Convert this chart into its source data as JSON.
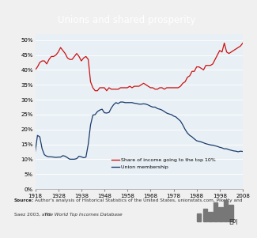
{
  "title": "Unions and shared prosperity",
  "title_bg": "#8fa5b0",
  "plot_bg": "#e8f0f5",
  "outer_bg": "#f0f0f0",
  "source_bg": "#d0d0d0",
  "legend_line1": "Share of income going to the top 10%",
  "legend_line2": "Union membership",
  "red_color": "#cc1111",
  "blue_color": "#1a3a6b",
  "ylim": [
    0,
    0.52
  ],
  "yticks": [
    0,
    0.05,
    0.1,
    0.15,
    0.2,
    0.25,
    0.3,
    0.35,
    0.4,
    0.45,
    0.5
  ],
  "xticks": [
    1918,
    1928,
    1938,
    1948,
    1958,
    1968,
    1978,
    1988,
    1998,
    2008
  ],
  "red_data": {
    "years": [
      1918,
      1919,
      1920,
      1921,
      1922,
      1923,
      1924,
      1925,
      1926,
      1927,
      1928,
      1929,
      1930,
      1931,
      1932,
      1933,
      1934,
      1935,
      1936,
      1937,
      1938,
      1939,
      1940,
      1941,
      1942,
      1943,
      1944,
      1945,
      1946,
      1947,
      1948,
      1949,
      1950,
      1951,
      1952,
      1953,
      1954,
      1955,
      1956,
      1957,
      1958,
      1959,
      1960,
      1961,
      1962,
      1963,
      1964,
      1965,
      1966,
      1967,
      1968,
      1969,
      1970,
      1971,
      1972,
      1973,
      1974,
      1975,
      1976,
      1977,
      1978,
      1979,
      1980,
      1981,
      1982,
      1983,
      1984,
      1985,
      1986,
      1987,
      1988,
      1989,
      1990,
      1991,
      1992,
      1993,
      1994,
      1995,
      1996,
      1997,
      1998,
      1999,
      2000,
      2001,
      2002,
      2003,
      2004,
      2005,
      2006,
      2007,
      2008
    ],
    "values": [
      0.4,
      0.41,
      0.425,
      0.43,
      0.43,
      0.42,
      0.435,
      0.445,
      0.445,
      0.45,
      0.46,
      0.475,
      0.465,
      0.455,
      0.44,
      0.435,
      0.435,
      0.445,
      0.455,
      0.445,
      0.43,
      0.44,
      0.445,
      0.435,
      0.36,
      0.34,
      0.33,
      0.33,
      0.34,
      0.34,
      0.34,
      0.33,
      0.34,
      0.335,
      0.335,
      0.335,
      0.335,
      0.34,
      0.34,
      0.34,
      0.34,
      0.345,
      0.34,
      0.345,
      0.345,
      0.345,
      0.35,
      0.355,
      0.35,
      0.345,
      0.34,
      0.34,
      0.335,
      0.335,
      0.34,
      0.34,
      0.335,
      0.34,
      0.34,
      0.34,
      0.34,
      0.34,
      0.34,
      0.345,
      0.355,
      0.36,
      0.375,
      0.38,
      0.395,
      0.395,
      0.41,
      0.41,
      0.405,
      0.4,
      0.415,
      0.415,
      0.415,
      0.42,
      0.435,
      0.45,
      0.465,
      0.46,
      0.49,
      0.46,
      0.455,
      0.46,
      0.465,
      0.47,
      0.475,
      0.48,
      0.49
    ]
  },
  "blue_data": {
    "years": [
      1918,
      1919,
      1920,
      1921,
      1922,
      1923,
      1924,
      1925,
      1926,
      1927,
      1928,
      1929,
      1930,
      1931,
      1932,
      1933,
      1934,
      1935,
      1936,
      1937,
      1938,
      1939,
      1940,
      1941,
      1942,
      1943,
      1944,
      1945,
      1946,
      1947,
      1948,
      1949,
      1950,
      1951,
      1952,
      1953,
      1954,
      1955,
      1956,
      1957,
      1958,
      1959,
      1960,
      1961,
      1962,
      1963,
      1964,
      1965,
      1966,
      1967,
      1968,
      1969,
      1970,
      1971,
      1972,
      1973,
      1974,
      1975,
      1976,
      1977,
      1978,
      1979,
      1980,
      1981,
      1982,
      1983,
      1984,
      1985,
      1986,
      1987,
      1988,
      1989,
      1990,
      1991,
      1992,
      1993,
      1994,
      1995,
      1996,
      1997,
      1998,
      1999,
      2000,
      2001,
      2002,
      2003,
      2004,
      2005,
      2006,
      2007,
      2008
    ],
    "values": [
      0.125,
      0.18,
      0.175,
      0.135,
      0.115,
      0.11,
      0.108,
      0.108,
      0.107,
      0.106,
      0.107,
      0.107,
      0.112,
      0.11,
      0.105,
      0.1,
      0.1,
      0.1,
      0.102,
      0.11,
      0.108,
      0.105,
      0.107,
      0.15,
      0.215,
      0.248,
      0.25,
      0.26,
      0.265,
      0.268,
      0.256,
      0.255,
      0.257,
      0.272,
      0.283,
      0.29,
      0.287,
      0.292,
      0.292,
      0.29,
      0.29,
      0.29,
      0.29,
      0.288,
      0.287,
      0.285,
      0.285,
      0.286,
      0.285,
      0.282,
      0.278,
      0.275,
      0.275,
      0.27,
      0.268,
      0.265,
      0.26,
      0.255,
      0.252,
      0.25,
      0.245,
      0.242,
      0.235,
      0.228,
      0.215,
      0.2,
      0.188,
      0.18,
      0.175,
      0.168,
      0.162,
      0.16,
      0.158,
      0.155,
      0.152,
      0.15,
      0.148,
      0.147,
      0.145,
      0.143,
      0.14,
      0.138,
      0.135,
      0.135,
      0.132,
      0.13,
      0.128,
      0.127,
      0.125,
      0.127,
      0.126
    ]
  }
}
